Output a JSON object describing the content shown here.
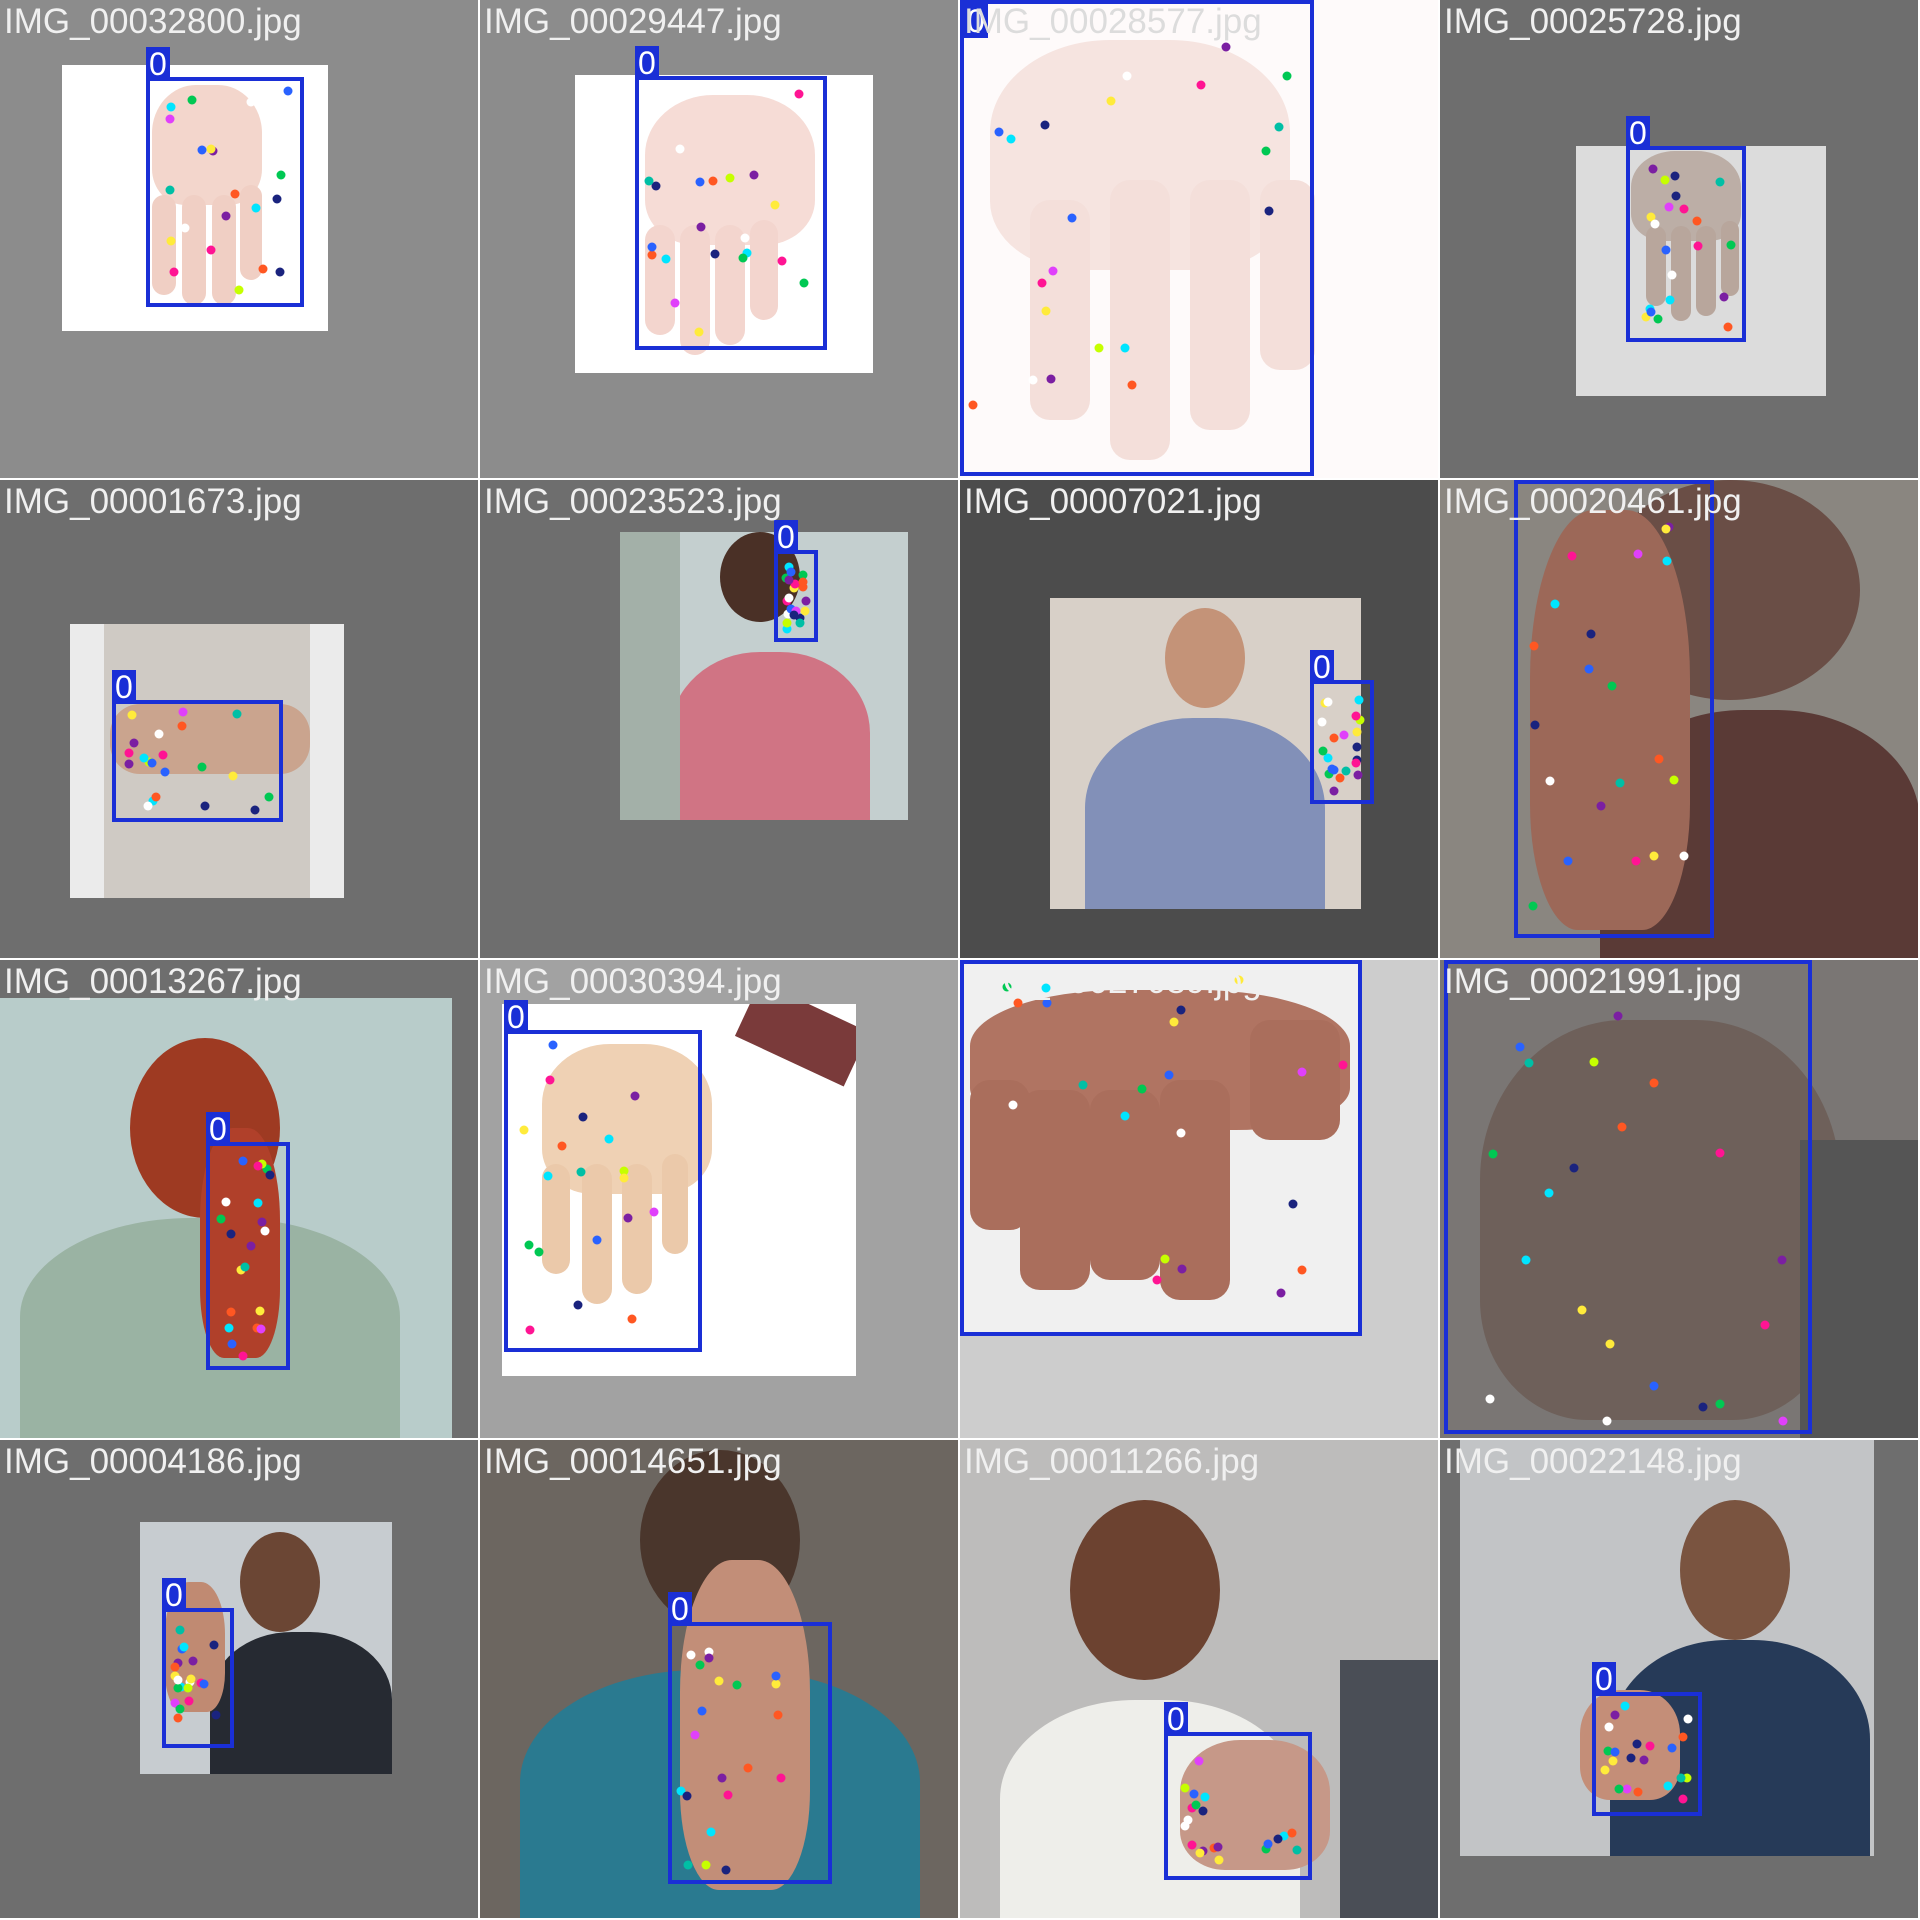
{
  "tiles": [
    {
      "filename": "IMG_00032800.jpg",
      "bbox_label": "0"
    },
    {
      "filename": "IMG_00029447.jpg",
      "bbox_label": "0"
    },
    {
      "filename": "IMG_00028577.jpg",
      "bbox_label": "0"
    },
    {
      "filename": "IMG_00025728.jpg",
      "bbox_label": "0"
    },
    {
      "filename": "IMG_00001673.jpg",
      "bbox_label": "0"
    },
    {
      "filename": "IMG_00023523.jpg",
      "bbox_label": "0"
    },
    {
      "filename": "IMG_00007021.jpg",
      "bbox_label": "0"
    },
    {
      "filename": "IMG_00020461.jpg",
      "bbox_label": "0"
    },
    {
      "filename": "IMG_00013267.jpg",
      "bbox_label": "0"
    },
    {
      "filename": "IMG_00030394.jpg",
      "bbox_label": "0"
    },
    {
      "filename": "IMG_00027089.jpg",
      "bbox_label": "0"
    },
    {
      "filename": "IMG_00021991.jpg",
      "bbox_label": "0"
    },
    {
      "filename": "IMG_00004186.jpg",
      "bbox_label": "0"
    },
    {
      "filename": "IMG_00014651.jpg",
      "bbox_label": "0"
    },
    {
      "filename": "IMG_00011266.jpg",
      "bbox_label": "0"
    },
    {
      "filename": "IMG_00022148.jpg",
      "bbox_label": "0"
    }
  ],
  "colors": {
    "bbox": "#1a2fd6",
    "keypoints": [
      "#00e5ff",
      "#1a237e",
      "#ff1493",
      "#00c853",
      "#7b1fa2",
      "#ff5722",
      "#ffeb3b",
      "#ffffff",
      "#2962ff",
      "#c6ff00",
      "#e040fb",
      "#00bfa5"
    ]
  }
}
